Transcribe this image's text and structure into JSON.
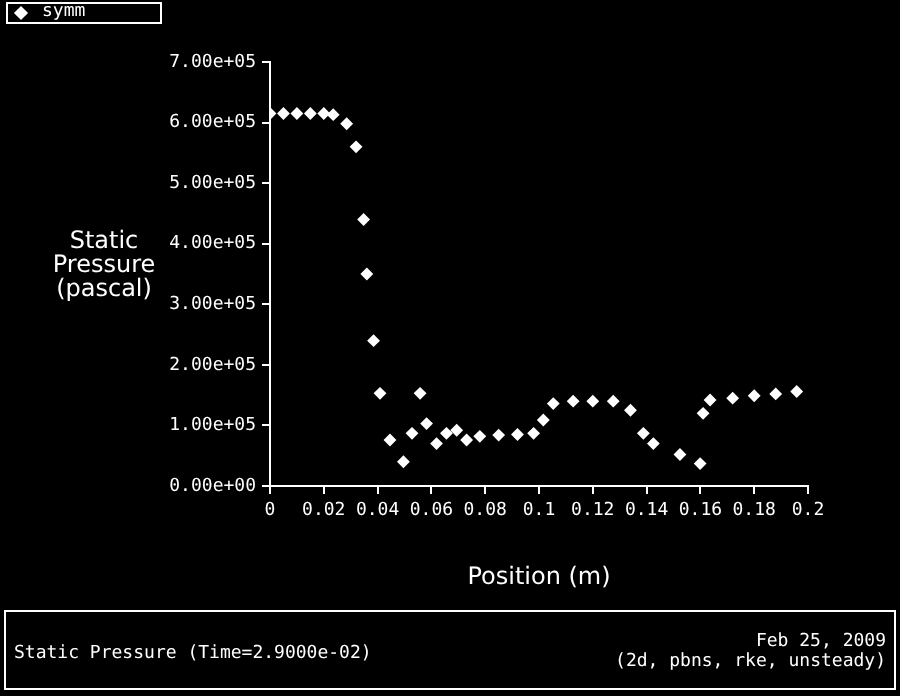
{
  "chart_data": {
    "type": "scatter",
    "title": "Static Pressure  (Time=2.9000e-02)",
    "xlabel": "Position (m)",
    "ylabel": "Static Pressure (pascal)",
    "annotations": [
      "Feb 25, 2009",
      "(2d, pbns, rke, unsteady)"
    ],
    "series": [
      {
        "name": "symm",
        "color": "#ffffff",
        "x": [
          0,
          0.005,
          0.01,
          0.015,
          0.02,
          0.0235,
          0.0285,
          0.032,
          0.0348,
          0.036,
          0.0385,
          0.0409,
          0.0446,
          0.0496,
          0.0528,
          0.0558,
          0.0582,
          0.0619,
          0.0656,
          0.0694,
          0.0731,
          0.078,
          0.085,
          0.092,
          0.098,
          0.1016,
          0.1053,
          0.1127,
          0.12,
          0.1276,
          0.134,
          0.1388,
          0.1425,
          0.1524,
          0.1599,
          0.161,
          0.1636,
          0.172,
          0.18,
          0.188,
          0.1958
        ],
        "values": [
          615000,
          615000,
          615000,
          615000,
          615000,
          613000,
          598000,
          560000,
          440000,
          350000,
          240000,
          153000,
          76000,
          40000,
          87000,
          153000,
          103000,
          70000,
          87000,
          92000,
          76000,
          82000,
          84000,
          85000,
          87000,
          109000,
          136000,
          140000,
          140000,
          140000,
          125000,
          87000,
          70000,
          52000,
          37000,
          120000,
          142000,
          145000,
          149000,
          152000,
          156000
        ]
      }
    ],
    "xlim": [
      0,
      0.2
    ],
    "xticks": [
      0,
      0.02,
      0.04,
      0.06,
      0.08,
      0.1,
      0.12,
      0.14,
      0.16,
      0.18,
      0.2
    ],
    "ylim": [
      0,
      700000
    ],
    "yticks": [
      {
        "value": 0,
        "label": "0.00e+00"
      },
      {
        "value": 100000,
        "label": "1.00e+05"
      },
      {
        "value": 200000,
        "label": "2.00e+05"
      },
      {
        "value": 300000,
        "label": "3.00e+05"
      },
      {
        "value": 400000,
        "label": "4.00e+05"
      },
      {
        "value": 500000,
        "label": "5.00e+05"
      },
      {
        "value": 600000,
        "label": "6.00e+05"
      },
      {
        "value": 700000,
        "label": "7.00e+05"
      }
    ],
    "grid": false,
    "legend": "top left",
    "marker": "diamond"
  }
}
